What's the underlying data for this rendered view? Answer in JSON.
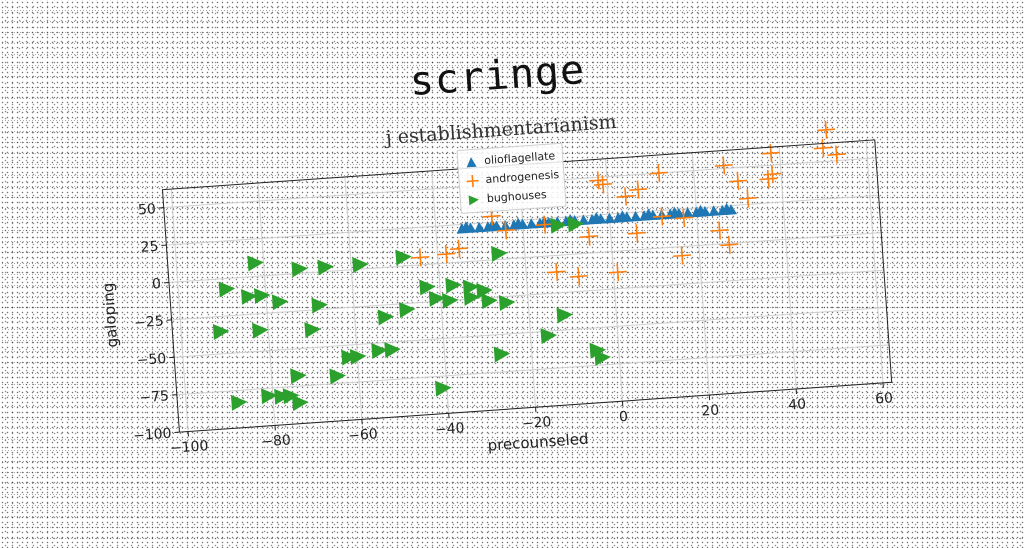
{
  "chart_data": {
    "type": "scatter",
    "title": "scringe",
    "subtitle": "j establishmentarianism",
    "xlabel": "precounseled",
    "ylabel": "galoping",
    "xlim": [
      -102,
      62
    ],
    "ylim": [
      -100,
      62
    ],
    "xticks": [
      -100,
      -80,
      -60,
      -40,
      -20,
      0,
      20,
      40,
      60
    ],
    "yticks": [
      -100,
      -75,
      -50,
      -25,
      0,
      25,
      50
    ],
    "grid": true,
    "legend_position": "top-center",
    "series": [
      {
        "name": "oliofIagellate",
        "marker": "triangle-up",
        "color": "#1f77b4",
        "points": [
          [
            -34,
            22
          ],
          [
            -32,
            22
          ],
          [
            -30,
            22
          ],
          [
            -28,
            22
          ],
          [
            -26,
            22
          ],
          [
            -24,
            22
          ],
          [
            -22,
            22
          ],
          [
            -20,
            22
          ],
          [
            -18,
            22
          ],
          [
            -16,
            22
          ],
          [
            -14,
            22
          ],
          [
            -12,
            22
          ],
          [
            -10,
            22
          ],
          [
            -8,
            22
          ],
          [
            -6,
            22
          ],
          [
            -4,
            22
          ],
          [
            -2,
            22
          ],
          [
            0,
            22
          ],
          [
            2,
            22
          ],
          [
            4,
            22
          ],
          [
            6,
            22
          ],
          [
            8,
            22
          ],
          [
            10,
            22
          ],
          [
            12,
            22
          ],
          [
            14,
            22
          ],
          [
            16,
            22
          ],
          [
            18,
            22
          ],
          [
            20,
            22
          ],
          [
            22,
            22
          ],
          [
            24,
            22
          ],
          [
            26,
            22
          ],
          [
            28,
            22
          ],
          [
            -33,
            23
          ],
          [
            -27,
            23
          ],
          [
            -21,
            23
          ],
          [
            -15,
            23
          ],
          [
            -9,
            23
          ],
          [
            -3,
            23
          ],
          [
            3,
            23
          ],
          [
            9,
            23
          ],
          [
            15,
            23
          ],
          [
            21,
            23
          ],
          [
            27,
            23
          ]
        ]
      },
      {
        "name": "androgenesis",
        "marker": "plus",
        "color": "#ff7f0e",
        "points": [
          [
            51,
            71
          ],
          [
            50,
            59
          ],
          [
            38,
            58
          ],
          [
            53,
            54
          ],
          [
            12,
            50
          ],
          [
            27,
            52
          ],
          [
            -2,
            48
          ],
          [
            -1,
            45
          ],
          [
            7,
            40
          ],
          [
            4,
            36
          ],
          [
            30,
            41
          ],
          [
            37,
            41
          ],
          [
            38,
            44
          ],
          [
            32,
            29
          ],
          [
            -27,
            29
          ],
          [
            -24,
            19
          ],
          [
            -15,
            21
          ],
          [
            12,
            21
          ],
          [
            17,
            19
          ],
          [
            6,
            11
          ],
          [
            -5,
            11
          ],
          [
            25,
            9
          ],
          [
            -35,
            9
          ],
          [
            -38,
            6
          ],
          [
            -44,
            5
          ],
          [
            27,
            -1
          ],
          [
            16,
            -6
          ],
          [
            -13,
            -11
          ],
          [
            -8,
            -15
          ],
          [
            1,
            -14
          ]
        ]
      },
      {
        "name": "bughouses",
        "marker": "triangle-right",
        "color": "#2ca02c",
        "points": [
          [
            -12,
            20
          ],
          [
            -8,
            20
          ],
          [
            -82,
            9
          ],
          [
            -72,
            3
          ],
          [
            -66,
            3
          ],
          [
            -58,
            3
          ],
          [
            -48,
            6
          ],
          [
            -26,
            4
          ],
          [
            -89,
            -7
          ],
          [
            -84,
            -13
          ],
          [
            -81,
            -13
          ],
          [
            -77,
            -18
          ],
          [
            -68,
            -22
          ],
          [
            -43,
            -15
          ],
          [
            -37,
            -15
          ],
          [
            -33,
            -17
          ],
          [
            -30,
            -20
          ],
          [
            -41,
            -23
          ],
          [
            -38,
            -25
          ],
          [
            -48,
            -29
          ],
          [
            -53,
            -33
          ],
          [
            -33,
            -24
          ],
          [
            -29,
            -27
          ],
          [
            -25,
            -29
          ],
          [
            -91,
            -35
          ],
          [
            -82,
            -36
          ],
          [
            -70,
            -38
          ],
          [
            -12,
            -40
          ],
          [
            -62,
            -58
          ],
          [
            -60,
            -58
          ],
          [
            -55,
            -55
          ],
          [
            -52,
            -55
          ],
          [
            -16,
            -53
          ],
          [
            -74,
            -68
          ],
          [
            -65,
            -70
          ],
          [
            -27,
            -63
          ],
          [
            -5,
            -65
          ],
          [
            -4,
            -70
          ],
          [
            -81,
            -80
          ],
          [
            -78,
            -81
          ],
          [
            -76,
            -81
          ],
          [
            -88,
            -83
          ],
          [
            -74,
            -86
          ],
          [
            -41,
            -83
          ]
        ]
      }
    ]
  }
}
